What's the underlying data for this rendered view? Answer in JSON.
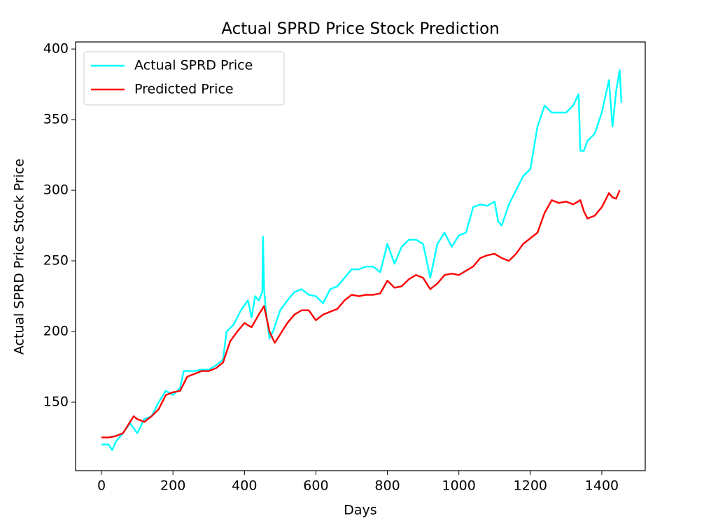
{
  "chart_data": {
    "type": "line",
    "title": "Actual SPRD Price Stock Prediction",
    "x_label": "Days",
    "y_label": "Actual SPRD Price Stock Price",
    "xlim": [
      -72.5,
      1521.5
    ],
    "ylim": [
      101.5,
      405
    ],
    "xticks": [
      0,
      200,
      400,
      600,
      800,
      1000,
      1200,
      1400
    ],
    "yticks": [
      150,
      200,
      250,
      300,
      350,
      400
    ],
    "grid": false,
    "legend": "upper left",
    "series": [
      {
        "name": "Actual SPRD Price",
        "color": "#00ffff",
        "x": [
          0,
          20,
          30,
          40,
          60,
          80,
          100,
          120,
          140,
          160,
          180,
          200,
          220,
          230,
          260,
          280,
          300,
          320,
          340,
          350,
          370,
          390,
          410,
          420,
          430,
          440,
          450,
          452,
          455,
          460,
          470,
          480,
          500,
          520,
          540,
          560,
          580,
          600,
          620,
          640,
          660,
          680,
          700,
          720,
          740,
          760,
          780,
          800,
          820,
          840,
          860,
          880,
          900,
          920,
          940,
          960,
          980,
          1000,
          1020,
          1040,
          1060,
          1080,
          1100,
          1110,
          1120,
          1140,
          1160,
          1180,
          1200,
          1220,
          1240,
          1260,
          1280,
          1300,
          1320,
          1335,
          1340,
          1350,
          1360,
          1380,
          1400,
          1420,
          1430,
          1440,
          1450,
          1455
        ],
        "values": [
          120,
          120,
          116,
          122,
          128,
          135,
          128,
          138,
          140,
          150,
          158,
          155,
          160,
          172,
          172,
          173,
          173,
          176,
          180,
          200,
          205,
          215,
          222,
          210,
          225,
          222,
          228,
          267,
          230,
          215,
          195,
          200,
          215,
          222,
          228,
          230,
          226,
          225,
          220,
          230,
          232,
          238,
          244,
          244,
          246,
          246,
          242,
          262,
          248,
          260,
          265,
          265,
          262,
          238,
          262,
          270,
          260,
          268,
          270,
          288,
          290,
          289,
          292,
          278,
          275,
          290,
          300,
          310,
          315,
          345,
          360,
          355,
          355,
          355,
          360,
          368,
          328,
          328,
          335,
          340,
          355,
          378,
          345,
          370,
          385,
          362
        ]
      },
      {
        "name": "Predicted Price",
        "color": "#ff0000",
        "x": [
          0,
          20,
          40,
          60,
          80,
          90,
          100,
          120,
          140,
          160,
          180,
          200,
          220,
          240,
          260,
          280,
          300,
          320,
          340,
          360,
          380,
          400,
          420,
          440,
          455,
          470,
          485,
          500,
          520,
          540,
          560,
          580,
          600,
          620,
          640,
          660,
          680,
          700,
          720,
          740,
          760,
          780,
          800,
          820,
          840,
          860,
          880,
          900,
          920,
          940,
          960,
          980,
          1000,
          1020,
          1040,
          1060,
          1080,
          1100,
          1120,
          1140,
          1160,
          1180,
          1200,
          1220,
          1240,
          1260,
          1280,
          1300,
          1320,
          1340,
          1350,
          1360,
          1380,
          1400,
          1420,
          1430,
          1440,
          1450
        ],
        "values": [
          125,
          125,
          126,
          128,
          136,
          140,
          138,
          136,
          140,
          145,
          155,
          157,
          158,
          168,
          170,
          172,
          172,
          174,
          178,
          193,
          200,
          206,
          203,
          212,
          218,
          200,
          192,
          198,
          206,
          212,
          215,
          215,
          208,
          212,
          214,
          216,
          222,
          226,
          225,
          226,
          226,
          227,
          236,
          231,
          232,
          237,
          240,
          238,
          230,
          234,
          240,
          241,
          240,
          243,
          246,
          252,
          254,
          255,
          252,
          250,
          255,
          262,
          266,
          270,
          284,
          293,
          291,
          292,
          290,
          293,
          285,
          280,
          282,
          288,
          298,
          295,
          294,
          300
        ]
      }
    ]
  }
}
